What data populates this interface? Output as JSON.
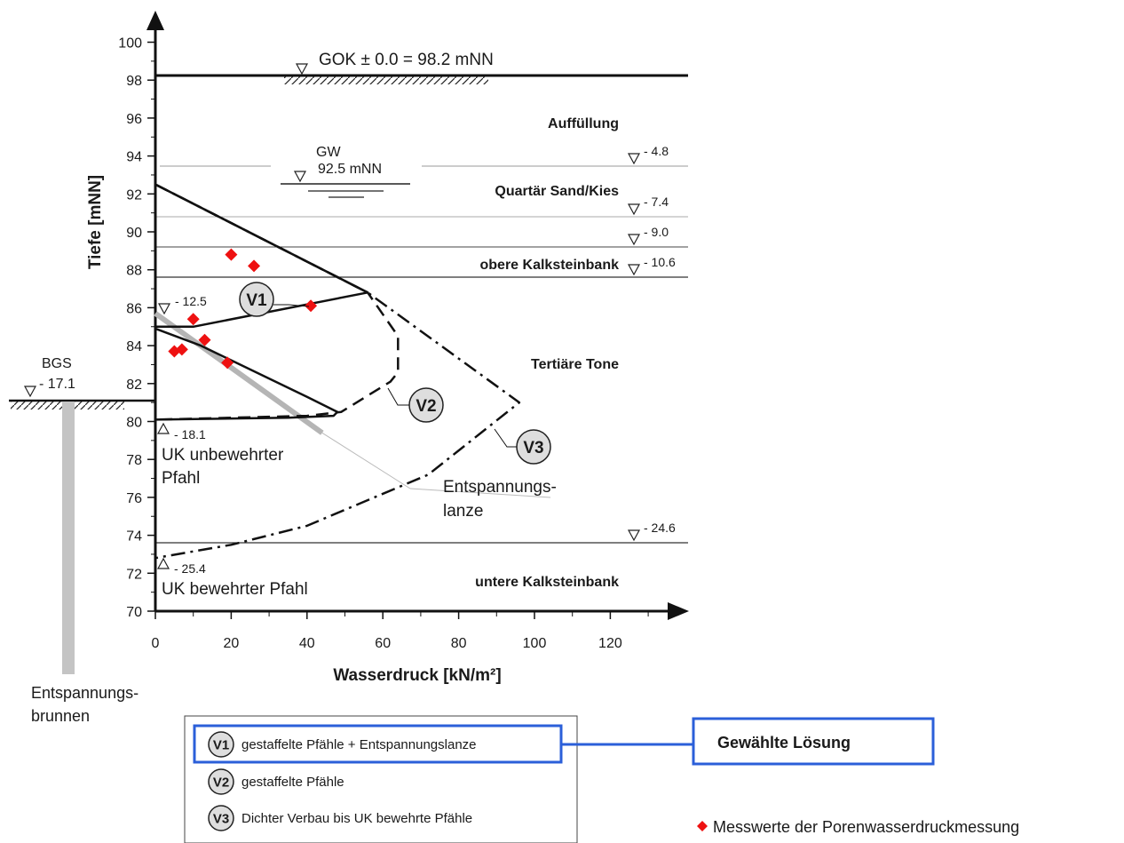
{
  "chart_data": {
    "type": "line",
    "xlabel": "Wasserdruck [kN/m²]",
    "ylabel": "Tiefe [mNN]",
    "xlim": [
      0,
      140
    ],
    "ylim": [
      70,
      101
    ],
    "xticks": [
      "0",
      "20",
      "40",
      "60",
      "80",
      "100",
      "120"
    ],
    "yticks": [
      "100",
      "98",
      "96",
      "94",
      "92",
      "90",
      "88",
      "86",
      "84",
      "82",
      "80",
      "78",
      "76",
      "74",
      "72",
      "70"
    ],
    "annotations": {
      "gok": "GOK ± 0.0 = 98.2 mNN",
      "gw": "GW",
      "gw_level": "92.5 mNN",
      "bgs": "BGS",
      "bgs_level": "- 17.1",
      "uk_unbewehrt_level": "- 18.1",
      "uk_unbewehrt": "UK unbewehrter",
      "uk_unbewehrt2": "Pfahl",
      "uk_bewehrt_level": "- 25.4",
      "uk_bewehrt": "UK bewehrter Pfahl",
      "lanze_top": "- 12.5",
      "lanze1": "Entspannungs-",
      "lanze2": "lanze",
      "brunnen1": "Entspannungs-",
      "brunnen2": "brunnen"
    },
    "layers": [
      {
        "name": "Auffüllung"
      },
      {
        "name": "Quartär Sand/Kies"
      },
      {
        "name": "obere Kalksteinbank"
      },
      {
        "name": "Tertiäre Tone"
      },
      {
        "name": "untere Kalksteinbank"
      }
    ],
    "layer_levels": [
      "- 4.8",
      "- 7.4",
      "- 9.0",
      "- 10.6",
      "- 24.6"
    ],
    "series": [
      {
        "name": "V1",
        "style": "solid",
        "points": [
          [
            0,
            92.5
          ],
          [
            56,
            86.8
          ],
          [
            10,
            85.0
          ],
          [
            0,
            85.0
          ],
          [
            0,
            84.9
          ],
          [
            12,
            84.0
          ],
          [
            40,
            81.3
          ],
          [
            48,
            80.5
          ],
          [
            47,
            80.3
          ],
          [
            35,
            80.2
          ],
          [
            0,
            80.1
          ]
        ]
      },
      {
        "name": "V2",
        "style": "dashed",
        "points": [
          [
            0,
            92.5
          ],
          [
            56,
            86.8
          ],
          [
            64,
            84.5
          ],
          [
            64,
            82.6
          ],
          [
            62,
            82.1
          ],
          [
            49,
            80.5
          ],
          [
            40,
            80.3
          ],
          [
            0,
            80.1
          ]
        ]
      },
      {
        "name": "V3",
        "style": "dashdot",
        "points": [
          [
            0,
            92.5
          ],
          [
            56,
            86.8
          ],
          [
            96,
            81.0
          ],
          [
            72,
            77.2
          ],
          [
            40,
            74.5
          ],
          [
            20,
            73.5
          ],
          [
            0,
            72.8
          ]
        ]
      }
    ],
    "measurements": {
      "name": "Messwerte der Porenwasserdruckmessung",
      "color": "#ee1111",
      "points": [
        [
          20,
          88.8
        ],
        [
          26,
          88.2
        ],
        [
          41,
          86.1
        ],
        [
          10,
          85.4
        ],
        [
          13,
          84.3
        ],
        [
          5,
          83.7
        ],
        [
          7,
          83.8
        ],
        [
          19,
          83.1
        ]
      ]
    },
    "legend": [
      {
        "badge": "V1",
        "label": "gestaffelte Pfähle + Entspannungslanze"
      },
      {
        "badge": "V2",
        "label": "gestaffelte Pfähle"
      },
      {
        "badge": "V3",
        "label": "Dichter Verbau bis UK bewehrte Pfähle"
      }
    ],
    "chosen_solution": "Gewählte Lösung",
    "highlight_color": "#2b5fd9"
  }
}
